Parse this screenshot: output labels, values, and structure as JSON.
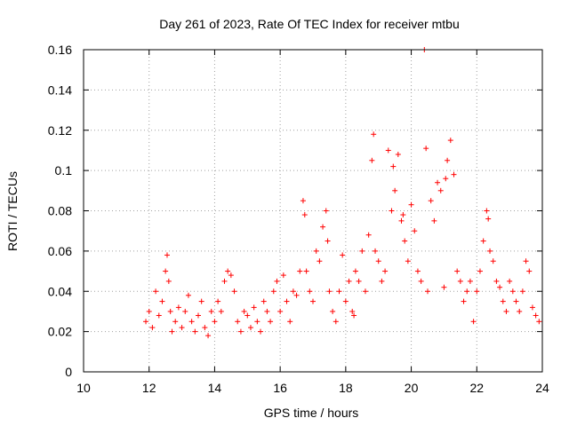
{
  "chart_data": {
    "type": "scatter",
    "title": "Day 261 of 2023, Rate Of TEC Index for receiver mtbu",
    "xlabel": "GPS time / hours",
    "ylabel": "ROTI / TECUs",
    "xlim": [
      10,
      24
    ],
    "ylim": [
      0,
      0.16
    ],
    "xticks": [
      "10",
      "12",
      "14",
      "16",
      "18",
      "20",
      "22",
      "24"
    ],
    "yticks": [
      "0",
      "0.02",
      "0.04",
      "0.06",
      "0.08",
      "0.1",
      "0.12",
      "0.14",
      "0.16"
    ],
    "grid": true,
    "marker": "+",
    "color": "#ff0000",
    "series": [
      {
        "x": [
          11.9,
          12.0,
          12.1,
          12.2,
          12.3,
          12.4,
          12.5,
          12.55,
          12.6,
          12.65,
          12.7,
          12.8,
          12.9,
          13.0,
          13.1,
          13.2,
          13.3,
          13.4,
          13.5,
          13.6,
          13.7,
          13.8,
          13.9,
          14.0,
          14.1,
          14.2,
          14.3,
          14.4,
          14.5,
          14.6,
          14.7,
          14.8,
          14.9,
          15.0,
          15.1,
          15.2,
          15.3,
          15.4,
          15.5,
          15.6,
          15.7,
          15.8,
          15.9,
          16.0,
          16.1,
          16.2,
          16.3,
          16.4,
          16.5,
          16.6,
          16.7,
          16.75,
          16.8,
          16.9,
          17.0,
          17.1,
          17.2,
          17.3,
          17.4,
          17.45,
          17.5,
          17.6,
          17.7,
          17.8,
          17.9,
          18.0,
          18.1,
          18.2,
          18.25,
          18.3,
          18.4,
          18.5,
          18.6,
          18.7,
          18.8,
          18.85,
          18.9,
          19.0,
          19.1,
          19.2,
          19.3,
          19.4,
          19.45,
          19.5,
          19.6,
          19.7,
          19.75,
          19.8,
          19.9,
          20.0,
          20.1,
          20.2,
          20.3,
          20.4,
          20.45,
          20.5,
          20.6,
          20.7,
          20.8,
          20.9,
          21.0,
          21.05,
          21.1,
          21.2,
          21.3,
          21.4,
          21.5,
          21.6,
          21.7,
          21.8,
          21.9,
          22.0,
          22.1,
          22.2,
          22.3,
          22.35,
          22.4,
          22.5,
          22.6,
          22.7,
          22.8,
          22.9,
          23.0,
          23.1,
          23.2,
          23.3,
          23.4,
          23.5,
          23.6,
          23.7,
          23.8,
          23.9
        ],
        "y": [
          0.025,
          0.03,
          0.022,
          0.04,
          0.028,
          0.035,
          0.05,
          0.058,
          0.045,
          0.03,
          0.02,
          0.025,
          0.032,
          0.022,
          0.03,
          0.038,
          0.025,
          0.02,
          0.028,
          0.035,
          0.022,
          0.018,
          0.03,
          0.025,
          0.035,
          0.03,
          0.045,
          0.05,
          0.048,
          0.04,
          0.025,
          0.02,
          0.03,
          0.028,
          0.022,
          0.032,
          0.025,
          0.02,
          0.035,
          0.03,
          0.025,
          0.04,
          0.045,
          0.03,
          0.048,
          0.035,
          0.025,
          0.04,
          0.038,
          0.05,
          0.085,
          0.078,
          0.05,
          0.04,
          0.035,
          0.06,
          0.055,
          0.072,
          0.08,
          0.065,
          0.04,
          0.03,
          0.025,
          0.04,
          0.058,
          0.035,
          0.045,
          0.03,
          0.028,
          0.05,
          0.045,
          0.06,
          0.04,
          0.068,
          0.105,
          0.118,
          0.06,
          0.055,
          0.045,
          0.05,
          0.11,
          0.08,
          0.102,
          0.09,
          0.108,
          0.075,
          0.078,
          0.065,
          0.055,
          0.083,
          0.07,
          0.05,
          0.045,
          0.16,
          0.111,
          0.04,
          0.085,
          0.075,
          0.094,
          0.09,
          0.042,
          0.096,
          0.105,
          0.115,
          0.098,
          0.05,
          0.045,
          0.035,
          0.04,
          0.045,
          0.025,
          0.04,
          0.05,
          0.065,
          0.08,
          0.076,
          0.06,
          0.055,
          0.045,
          0.042,
          0.035,
          0.03,
          0.045,
          0.04,
          0.035,
          0.03,
          0.04,
          0.055,
          0.05,
          0.032,
          0.028,
          0.025
        ]
      }
    ]
  }
}
